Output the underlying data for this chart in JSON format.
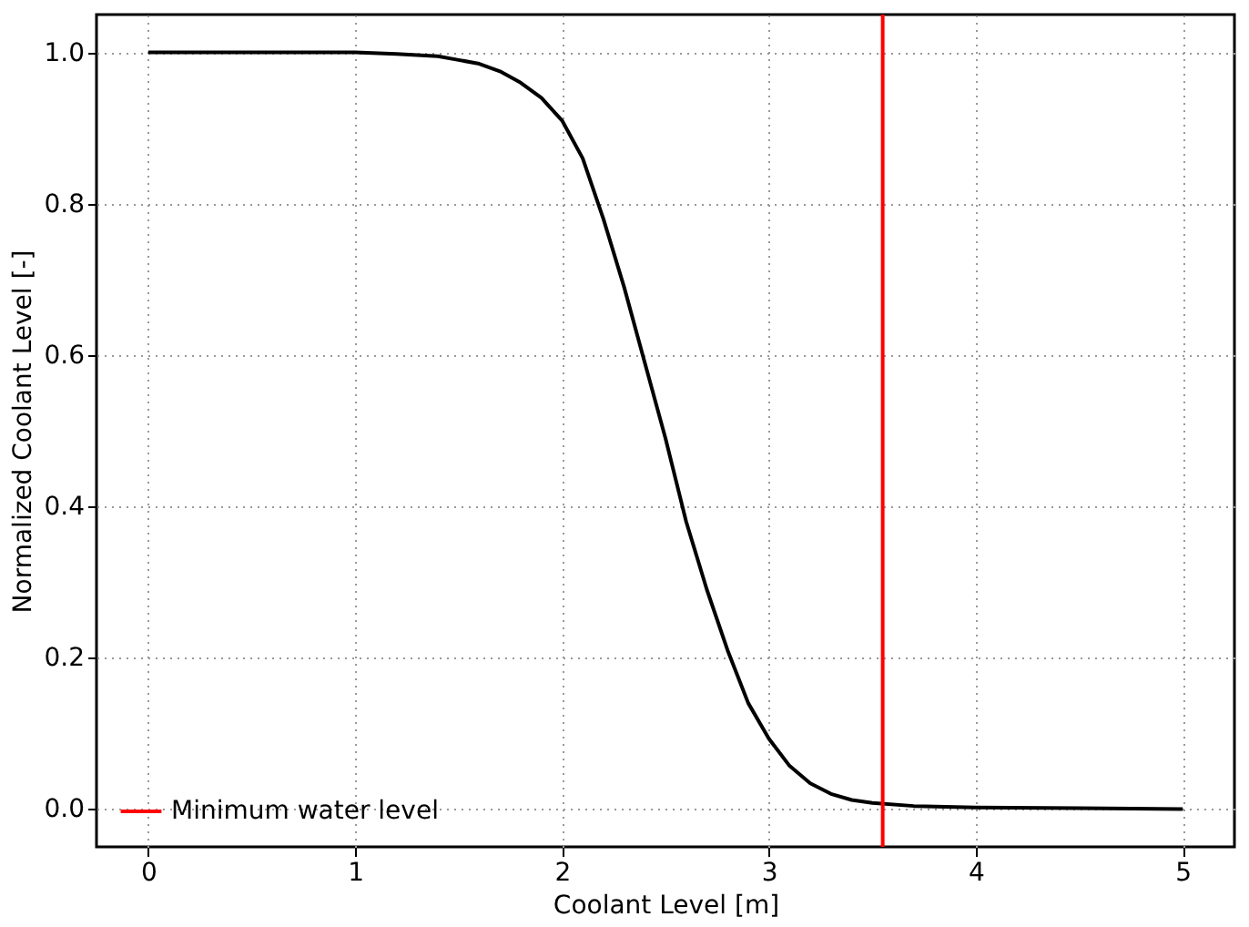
{
  "chart_data": {
    "type": "line",
    "xlabel": "Coolant Level [m]",
    "ylabel": "Normalized Coolant Level [-]",
    "x": [
      0,
      0.5,
      1,
      1.2,
      1.4,
      1.5,
      1.6,
      1.7,
      1.8,
      1.9,
      2.0,
      2.1,
      2.2,
      2.3,
      2.4,
      2.5,
      2.6,
      2.7,
      2.8,
      2.9,
      3.0,
      3.1,
      3.2,
      3.3,
      3.4,
      3.5,
      3.7,
      4.0,
      4.5,
      5.0
    ],
    "series": [
      {
        "color": "#000000",
        "values": [
          1.0,
          1.0,
          1.0,
          0.998,
          0.995,
          0.99,
          0.985,
          0.975,
          0.96,
          0.94,
          0.91,
          0.86,
          0.78,
          0.69,
          0.59,
          0.49,
          0.38,
          0.29,
          0.21,
          0.14,
          0.093,
          0.057,
          0.034,
          0.02,
          0.012,
          0.008,
          0.004,
          0.002,
          0.001,
          0.0
        ]
      },
      {
        "name": "Minimum water level",
        "type": "line",
        "color": "#ff0000",
        "x": [
          3.55,
          3.55
        ],
        "values": [
          -0.05,
          1.05
        ]
      }
    ],
    "xlim": [
      -0.25,
      5.25
    ],
    "xticks": [
      0,
      1,
      2,
      3,
      4,
      5
    ],
    "ylim": [
      -0.05,
      1.05
    ],
    "yticks": [
      {
        "value": 0,
        "label": "0.0"
      },
      {
        "value": 0.2,
        "label": "0.2"
      },
      {
        "value": 0.4,
        "label": "0.4"
      },
      {
        "value": 0.6,
        "label": "0.6"
      },
      {
        "value": 0.8,
        "label": "0.8"
      },
      {
        "value": 1,
        "label": "1.0"
      }
    ],
    "grid": true,
    "legend": "bottom left",
    "line_style": "solid"
  }
}
